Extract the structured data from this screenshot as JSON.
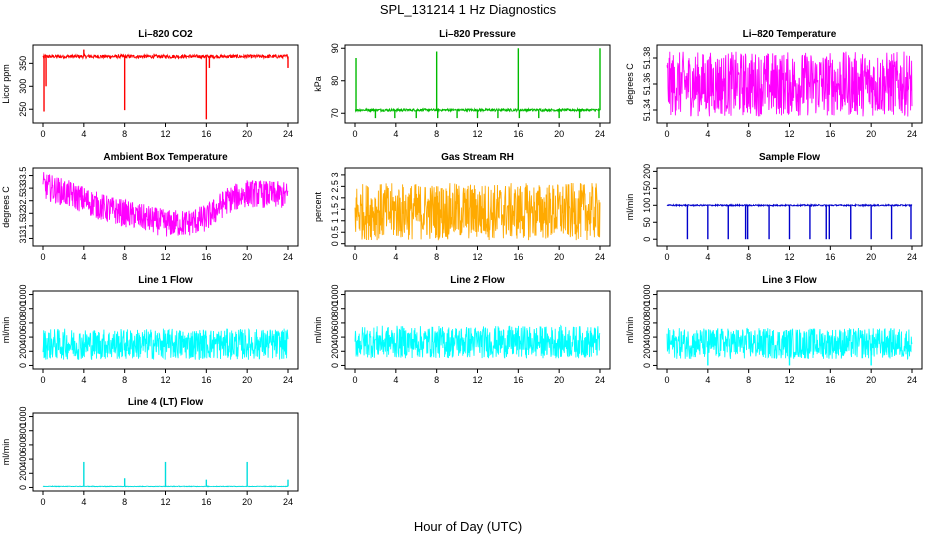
{
  "figure": {
    "title": "SPL_131214  1 Hz Diagnostics",
    "xlabel": "Hour of Day (UTC)"
  },
  "chart_data": [
    {
      "type": "line",
      "title": "Li–820 CO2",
      "ylabel": "Licor ppm",
      "color": "#ff0000",
      "xlim": [
        0,
        24
      ],
      "ylim": [
        220,
        390
      ],
      "yticks": [
        250,
        300,
        350
      ],
      "xticks": [
        0,
        4,
        8,
        12,
        16,
        20,
        24
      ],
      "base": 365,
      "noise": 4,
      "spikes": [
        [
          0.1,
          245
        ],
        [
          0.3,
          300
        ],
        [
          4.0,
          380
        ],
        [
          8.0,
          248
        ],
        [
          16.0,
          228
        ],
        [
          16.3,
          340
        ],
        [
          24.0,
          340
        ]
      ]
    },
    {
      "type": "line",
      "title": "Li–820 Pressure",
      "ylabel": "kPa",
      "color": "#00bb00",
      "xlim": [
        0,
        24
      ],
      "ylim": [
        67,
        91
      ],
      "yticks": [
        70,
        80,
        90
      ],
      "xticks": [
        0,
        4,
        8,
        12,
        16,
        20,
        24
      ],
      "base": 71,
      "noise": 0.4,
      "spikes": [
        [
          0.1,
          87
        ],
        [
          8.0,
          89
        ],
        [
          16.0,
          90
        ],
        [
          24.0,
          90
        ],
        [
          2.0,
          68.5
        ],
        [
          3.9,
          68.5
        ],
        [
          6.0,
          68.5
        ],
        [
          8.1,
          68.5
        ],
        [
          10.0,
          68.5
        ],
        [
          12.0,
          68.5
        ],
        [
          14.0,
          68.5
        ],
        [
          16.1,
          68.5
        ],
        [
          18.0,
          68.5
        ],
        [
          20.0,
          68.5
        ],
        [
          22.0,
          68.5
        ],
        [
          23.9,
          68.5
        ]
      ]
    },
    {
      "type": "line",
      "title": "Li–820 Temperature",
      "ylabel": "degrees C",
      "color": "#ff00ff",
      "xlim": [
        0,
        24
      ],
      "ylim": [
        51.33,
        51.39
      ],
      "yticks": [
        51.34,
        51.36,
        51.38
      ],
      "xticks": [
        0,
        4,
        8,
        12,
        16,
        20,
        24
      ],
      "base": 51.36,
      "noise": 0.025,
      "spikes": []
    },
    {
      "type": "line",
      "title": "Ambient Box Temperature",
      "ylabel": "degrees C",
      "color": "#ff00ff",
      "xlim": [
        0,
        24
      ],
      "ylim": [
        30.7,
        33.8
      ],
      "yticks": [
        31.0,
        31.5,
        32.0,
        32.5,
        33.0,
        33.5
      ],
      "xticks": [
        0,
        4,
        8,
        12,
        16,
        20,
        24
      ],
      "trend": [
        [
          0,
          33.1
        ],
        [
          3,
          32.7
        ],
        [
          6,
          32.2
        ],
        [
          9,
          31.9
        ],
        [
          12,
          31.6
        ],
        [
          14,
          31.6
        ],
        [
          16,
          31.8
        ],
        [
          18,
          32.5
        ],
        [
          20,
          32.8
        ],
        [
          24,
          32.7
        ]
      ],
      "noise": 0.55,
      "spikes": []
    },
    {
      "type": "line",
      "title": "Gas Stream RH",
      "ylabel": "percent",
      "color": "#ffaa00",
      "xlim": [
        0,
        24
      ],
      "ylim": [
        -0.1,
        3.3
      ],
      "yticks": [
        0.0,
        0.5,
        1.0,
        1.5,
        2.0,
        2.5,
        3.0
      ],
      "xticks": [
        0,
        4,
        8,
        12,
        16,
        20,
        24
      ],
      "base": 1.4,
      "noise": 1.25,
      "spikes": []
    },
    {
      "type": "line",
      "title": "Sample Flow",
      "ylabel": "ml/min",
      "color": "#0000cc",
      "xlim": [
        0,
        24
      ],
      "ylim": [
        -20,
        210
      ],
      "yticks": [
        0,
        50,
        100,
        150,
        200
      ],
      "xticks": [
        0,
        4,
        8,
        12,
        16,
        20,
        24
      ],
      "base": 100,
      "noise": 2,
      "spikes": [
        [
          2.0,
          0
        ],
        [
          4.0,
          0
        ],
        [
          6.0,
          0
        ],
        [
          7.7,
          0
        ],
        [
          7.9,
          0
        ],
        [
          10.0,
          0
        ],
        [
          12.0,
          0
        ],
        [
          14.0,
          0
        ],
        [
          15.6,
          0
        ],
        [
          15.9,
          0
        ],
        [
          18.0,
          0
        ],
        [
          20.0,
          0
        ],
        [
          22.0,
          0
        ],
        [
          23.9,
          0
        ]
      ]
    },
    {
      "type": "line",
      "title": "Line 1 Flow",
      "ylabel": "ml/min",
      "color": "#00ffff",
      "xlim": [
        0,
        24
      ],
      "ylim": [
        -50,
        1050
      ],
      "yticks": [
        0,
        200,
        400,
        600,
        800,
        1000
      ],
      "xticks": [
        0,
        4,
        8,
        12,
        16,
        20,
        24
      ],
      "base": 300,
      "noise": 220,
      "spikes": []
    },
    {
      "type": "line",
      "title": "Line 2 Flow",
      "ylabel": "ml/min",
      "color": "#00ffff",
      "xlim": [
        0,
        24
      ],
      "ylim": [
        -50,
        1050
      ],
      "yticks": [
        0,
        200,
        400,
        600,
        800,
        1000
      ],
      "xticks": [
        0,
        4,
        8,
        12,
        16,
        20,
        24
      ],
      "base": 330,
      "noise": 230,
      "spikes": []
    },
    {
      "type": "line",
      "title": "Line 3 Flow",
      "ylabel": "ml/min",
      "color": "#00ffff",
      "xlim": [
        0,
        24
      ],
      "ylim": [
        -50,
        1050
      ],
      "yticks": [
        0,
        200,
        400,
        600,
        800,
        1000
      ],
      "xticks": [
        0,
        4,
        8,
        12,
        16,
        20,
        24
      ],
      "base": 310,
      "noise": 220,
      "spikes": [
        [
          4.0,
          0
        ],
        [
          12.0,
          0
        ],
        [
          20.0,
          0
        ]
      ]
    },
    {
      "type": "line",
      "title": "Line 4 (LT) Flow",
      "ylabel": "ml/min",
      "color": "#00dddd",
      "xlim": [
        0,
        24
      ],
      "ylim": [
        -50,
        1050
      ],
      "yticks": [
        0,
        200,
        400,
        600,
        800,
        1000
      ],
      "xticks": [
        0,
        4,
        8,
        12,
        16,
        20,
        24
      ],
      "base": 15,
      "noise": 4,
      "spikes": [
        [
          4.0,
          360
        ],
        [
          8.0,
          130
        ],
        [
          12.0,
          360
        ],
        [
          16.0,
          110
        ],
        [
          20.0,
          360
        ],
        [
          24.0,
          110
        ]
      ]
    }
  ]
}
